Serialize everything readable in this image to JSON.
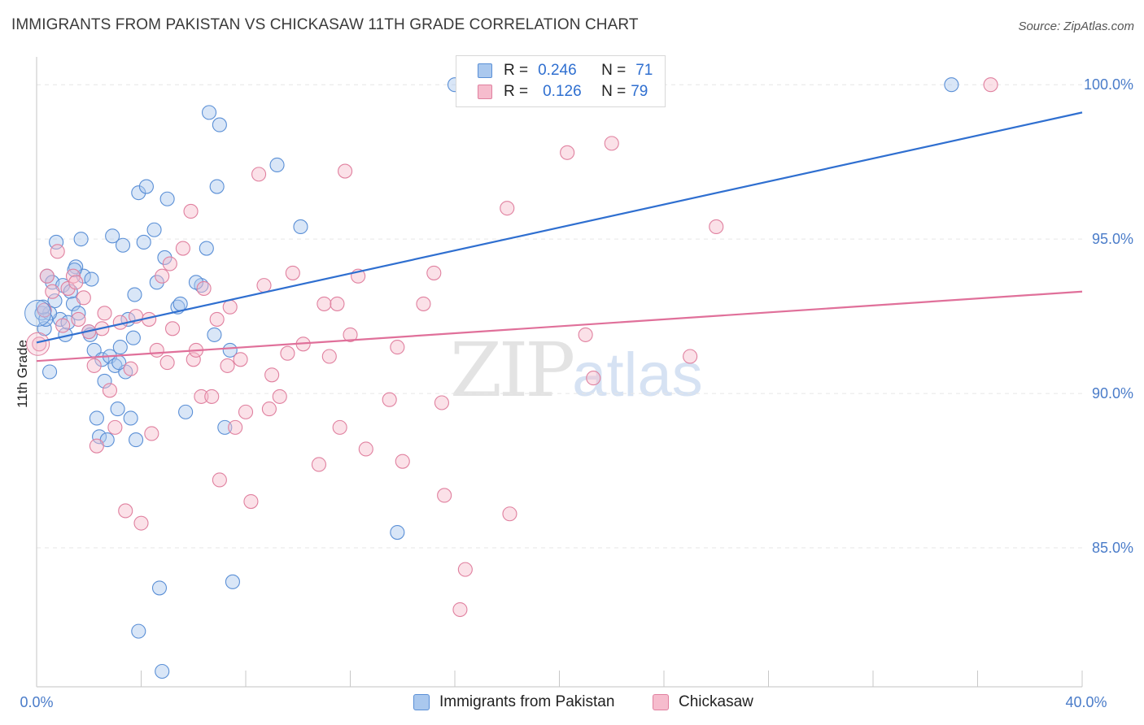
{
  "title": "IMMIGRANTS FROM PAKISTAN VS CHICKASAW 11TH GRADE CORRELATION CHART",
  "source": "Source: ZipAtlas.com",
  "watermark": {
    "zip": "ZIP",
    "atlas": "atlas"
  },
  "colors": {
    "blue_fill": "#aac8ee",
    "blue_stroke": "#5a8fd6",
    "blue_line": "#2f6fd0",
    "pink_fill": "#f6bccd",
    "pink_stroke": "#e0809f",
    "pink_line": "#e0709a",
    "axis_text": "#4a7cc9",
    "grid": "#e6e6e6"
  },
  "legend": {
    "rows": [
      {
        "r_label": "R =",
        "r_value": "0.246",
        "n_label": "N =",
        "n_value": "71"
      },
      {
        "r_label": "R =",
        "r_value": "0.126",
        "n_label": "N =",
        "n_value": "79"
      }
    ]
  },
  "bottom_legend": [
    "Immigrants from Pakistan",
    "Chickasaw"
  ],
  "chart_data": {
    "type": "scatter",
    "title": "IMMIGRANTS FROM PAKISTAN VS CHICKASAW 11TH GRADE CORRELATION CHART",
    "xlabel": "",
    "ylabel": "11th Grade",
    "xlim": [
      0,
      40
    ],
    "ylim": [
      80.5,
      100.9
    ],
    "x_tick_labels": [
      {
        "value": 0,
        "label": "0.0%"
      },
      {
        "value": 40,
        "label": "40.0%"
      }
    ],
    "x_minor_ticks": [
      4,
      8,
      12,
      16,
      20,
      24,
      28,
      32,
      36
    ],
    "y_ticks": [
      {
        "value": 100,
        "label": "100.0%"
      },
      {
        "value": 95,
        "label": "95.0%"
      },
      {
        "value": 90,
        "label": "90.0%"
      },
      {
        "value": 85,
        "label": "85.0%"
      }
    ],
    "grid": true,
    "series": [
      {
        "name": "Immigrants from Pakistan",
        "R": 0.246,
        "N": 71,
        "trend": [
          [
            0,
            91.65
          ],
          [
            40,
            99.1
          ]
        ],
        "points": [
          [
            0.2,
            92.6
          ],
          [
            0.3,
            92.1
          ],
          [
            0.4,
            93.8
          ],
          [
            0.5,
            90.7
          ],
          [
            0.6,
            93.6
          ],
          [
            0.7,
            93.0
          ],
          [
            0.75,
            94.9
          ],
          [
            0.9,
            92.4
          ],
          [
            1.0,
            93.5
          ],
          [
            1.1,
            91.9
          ],
          [
            1.3,
            93.3
          ],
          [
            1.4,
            92.9
          ],
          [
            1.5,
            94.1
          ],
          [
            1.6,
            92.6
          ],
          [
            1.7,
            95.0
          ],
          [
            1.8,
            93.8
          ],
          [
            2.0,
            92.0
          ],
          [
            2.2,
            91.4
          ],
          [
            2.3,
            89.2
          ],
          [
            2.4,
            88.6
          ],
          [
            2.5,
            91.1
          ],
          [
            2.6,
            90.4
          ],
          [
            2.7,
            88.5
          ],
          [
            2.8,
            91.2
          ],
          [
            2.9,
            95.1
          ],
          [
            3.0,
            90.9
          ],
          [
            3.1,
            89.5
          ],
          [
            3.2,
            91.5
          ],
          [
            3.3,
            94.8
          ],
          [
            3.4,
            90.7
          ],
          [
            3.5,
            92.4
          ],
          [
            3.6,
            89.2
          ],
          [
            3.7,
            91.8
          ],
          [
            3.75,
            93.2
          ],
          [
            3.8,
            88.5
          ],
          [
            3.9,
            96.5
          ],
          [
            4.1,
            94.9
          ],
          [
            4.2,
            96.7
          ],
          [
            4.5,
            95.3
          ],
          [
            4.7,
            83.7
          ],
          [
            4.9,
            94.4
          ],
          [
            5.0,
            96.3
          ],
          [
            5.4,
            92.8
          ],
          [
            5.5,
            92.9
          ],
          [
            5.7,
            89.4
          ],
          [
            6.3,
            93.5
          ],
          [
            6.5,
            94.7
          ],
          [
            6.6,
            99.1
          ],
          [
            6.8,
            91.9
          ],
          [
            6.9,
            96.7
          ],
          [
            7.0,
            98.7
          ],
          [
            7.2,
            88.9
          ],
          [
            7.4,
            91.4
          ],
          [
            7.5,
            83.9
          ],
          [
            9.2,
            97.4
          ],
          [
            10.1,
            95.4
          ],
          [
            4.8,
            81.0
          ],
          [
            3.9,
            82.3
          ],
          [
            13.8,
            85.5
          ],
          [
            16.0,
            100.0
          ],
          [
            35.0,
            100.0
          ],
          [
            1.2,
            92.3
          ],
          [
            2.1,
            93.7
          ],
          [
            0.5,
            92.6
          ],
          [
            0.35,
            92.4
          ],
          [
            0.25,
            92.8
          ],
          [
            1.45,
            94.0
          ],
          [
            2.05,
            91.9
          ],
          [
            3.15,
            91.0
          ],
          [
            4.6,
            93.6
          ],
          [
            6.1,
            93.6
          ]
        ]
      },
      {
        "name": "Chickasaw",
        "R": 0.126,
        "N": 79,
        "trend": [
          [
            0,
            91.05
          ],
          [
            40,
            93.3
          ]
        ],
        "points": [
          [
            0.1,
            91.6
          ],
          [
            0.3,
            92.7
          ],
          [
            0.4,
            93.8
          ],
          [
            0.6,
            93.3
          ],
          [
            0.8,
            94.6
          ],
          [
            1.0,
            92.2
          ],
          [
            1.2,
            93.4
          ],
          [
            1.4,
            93.8
          ],
          [
            1.5,
            93.6
          ],
          [
            1.6,
            92.4
          ],
          [
            1.8,
            93.1
          ],
          [
            2.0,
            92.0
          ],
          [
            2.2,
            90.9
          ],
          [
            2.3,
            88.3
          ],
          [
            2.5,
            92.1
          ],
          [
            2.6,
            92.6
          ],
          [
            2.8,
            90.1
          ],
          [
            3.0,
            88.9
          ],
          [
            3.2,
            92.3
          ],
          [
            3.4,
            86.2
          ],
          [
            3.6,
            90.8
          ],
          [
            3.8,
            92.5
          ],
          [
            4.0,
            85.8
          ],
          [
            4.3,
            92.4
          ],
          [
            4.4,
            88.7
          ],
          [
            4.6,
            91.4
          ],
          [
            4.8,
            93.8
          ],
          [
            5.0,
            91.0
          ],
          [
            5.1,
            94.2
          ],
          [
            5.2,
            92.1
          ],
          [
            5.6,
            94.7
          ],
          [
            5.9,
            95.9
          ],
          [
            6.0,
            91.1
          ],
          [
            6.1,
            91.4
          ],
          [
            6.3,
            89.9
          ],
          [
            6.4,
            93.4
          ],
          [
            6.7,
            89.9
          ],
          [
            6.9,
            92.4
          ],
          [
            7.0,
            87.2
          ],
          [
            7.3,
            90.9
          ],
          [
            7.4,
            92.8
          ],
          [
            7.6,
            88.9
          ],
          [
            7.8,
            91.1
          ],
          [
            8.0,
            89.4
          ],
          [
            8.2,
            86.5
          ],
          [
            8.5,
            97.1
          ],
          [
            8.7,
            93.5
          ],
          [
            8.9,
            89.5
          ],
          [
            9.0,
            90.6
          ],
          [
            9.3,
            89.9
          ],
          [
            9.6,
            91.3
          ],
          [
            9.8,
            93.9
          ],
          [
            10.2,
            91.6
          ],
          [
            10.8,
            87.7
          ],
          [
            11.0,
            92.9
          ],
          [
            11.2,
            91.2
          ],
          [
            11.5,
            92.9
          ],
          [
            11.6,
            88.9
          ],
          [
            11.8,
            97.2
          ],
          [
            12.0,
            91.9
          ],
          [
            12.3,
            93.8
          ],
          [
            12.6,
            88.2
          ],
          [
            13.5,
            89.8
          ],
          [
            13.8,
            91.5
          ],
          [
            14.0,
            87.8
          ],
          [
            14.8,
            92.9
          ],
          [
            15.2,
            93.9
          ],
          [
            15.5,
            89.7
          ],
          [
            15.6,
            86.7
          ],
          [
            16.4,
            84.3
          ],
          [
            16.2,
            83.0
          ],
          [
            18.0,
            96.0
          ],
          [
            18.1,
            86.1
          ],
          [
            20.3,
            97.8
          ],
          [
            21.0,
            91.9
          ],
          [
            21.3,
            90.5
          ],
          [
            22.0,
            98.1
          ],
          [
            25.0,
            91.2
          ],
          [
            26.0,
            95.4
          ]
        ]
      }
    ],
    "extra_points_note": "",
    "far_points": [
      [
        36.5,
        100.0
      ]
    ]
  }
}
